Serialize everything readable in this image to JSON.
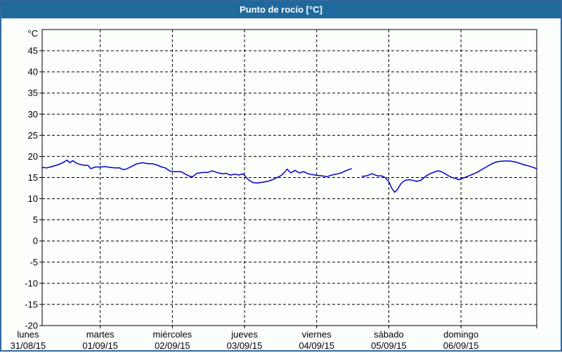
{
  "window": {
    "title": "Punto de rocío [°C]"
  },
  "colors": {
    "title_bar": "#1f699c",
    "frame_border": "#33679b",
    "page_bg": "#fcfefc",
    "line": "#0000c8",
    "grid": "#000000",
    "text": "#000000"
  },
  "chart_data": {
    "type": "line",
    "title": "Punto de rocío [°C]",
    "ylabel": "°C",
    "unit": "°C",
    "ylim": [
      -20,
      50
    ],
    "ytick_labels": [
      45,
      40,
      35,
      30,
      25,
      20,
      15,
      10,
      5,
      0,
      -5,
      -10,
      -15,
      -20
    ],
    "x_domain_days": [
      0.195,
      7.05
    ],
    "x_gridline_days": [
      1,
      2,
      3,
      4,
      5,
      6
    ],
    "grid": "dashed",
    "legend": "none",
    "x_labels": [
      {
        "d": 0,
        "day": "lunes",
        "date": "31/08/15"
      },
      {
        "d": 1,
        "day": "martes",
        "date": "01/09/15"
      },
      {
        "d": 2,
        "day": "miércoles",
        "date": "02/09/15"
      },
      {
        "d": 3,
        "day": "jueves",
        "date": "03/09/15"
      },
      {
        "d": 4,
        "day": "viernes",
        "date": "04/09/15"
      },
      {
        "d": 5,
        "day": "sábado",
        "date": "05/09/15"
      },
      {
        "d": 6,
        "day": "domingo",
        "date": "06/09/15"
      }
    ],
    "series": [
      {
        "name": "Punto de rocío",
        "segments": [
          [
            [
              0.195,
              17.4
            ],
            [
              0.26,
              17.3
            ],
            [
              0.33,
              17.6
            ],
            [
              0.41,
              18.0
            ],
            [
              0.48,
              18.5
            ],
            [
              0.54,
              19.1
            ],
            [
              0.58,
              18.5
            ],
            [
              0.62,
              19.0
            ],
            [
              0.67,
              18.4
            ],
            [
              0.72,
              18.1
            ],
            [
              0.78,
              17.9
            ],
            [
              0.83,
              17.9
            ],
            [
              0.87,
              17.1
            ],
            [
              0.93,
              17.5
            ],
            [
              1.0,
              17.5
            ],
            [
              1.07,
              17.6
            ],
            [
              1.14,
              17.4
            ],
            [
              1.21,
              17.3
            ],
            [
              1.27,
              17.3
            ],
            [
              1.31,
              16.9
            ],
            [
              1.36,
              17.0
            ],
            [
              1.43,
              17.6
            ],
            [
              1.5,
              18.2
            ],
            [
              1.58,
              18.5
            ],
            [
              1.66,
              18.3
            ],
            [
              1.72,
              18.3
            ],
            [
              1.78,
              18.0
            ],
            [
              1.85,
              17.5
            ],
            [
              1.9,
              17.3
            ],
            [
              1.97,
              16.5
            ],
            [
              2.05,
              16.4
            ],
            [
              2.12,
              16.4
            ],
            [
              2.18,
              15.8
            ],
            [
              2.24,
              15.3
            ],
            [
              2.28,
              15.2
            ],
            [
              2.34,
              16.0
            ],
            [
              2.42,
              16.2
            ],
            [
              2.49,
              16.2
            ],
            [
              2.55,
              16.6
            ],
            [
              2.62,
              16.2
            ],
            [
              2.69,
              15.9
            ],
            [
              2.75,
              16.0
            ],
            [
              2.8,
              15.6
            ],
            [
              2.87,
              15.8
            ],
            [
              2.92,
              15.6
            ],
            [
              2.98,
              15.9
            ],
            [
              3.02,
              15.1
            ],
            [
              3.06,
              14.4
            ],
            [
              3.12,
              13.8
            ],
            [
              3.18,
              13.7
            ],
            [
              3.25,
              13.9
            ],
            [
              3.32,
              14.1
            ],
            [
              3.39,
              14.5
            ],
            [
              3.45,
              15.0
            ],
            [
              3.51,
              15.5
            ],
            [
              3.55,
              16.2
            ],
            [
              3.59,
              17.0
            ],
            [
              3.64,
              16.1
            ],
            [
              3.7,
              16.7
            ],
            [
              3.76,
              16.1
            ],
            [
              3.82,
              16.4
            ],
            [
              3.88,
              15.9
            ],
            [
              3.94,
              15.7
            ],
            [
              4.01,
              15.5
            ],
            [
              4.08,
              15.4
            ],
            [
              4.14,
              15.2
            ],
            [
              4.21,
              15.6
            ],
            [
              4.27,
              15.8
            ],
            [
              4.34,
              16.1
            ],
            [
              4.4,
              16.6
            ],
            [
              4.48,
              17.1
            ]
          ],
          [
            [
              4.63,
              15.3
            ],
            [
              4.69,
              15.4
            ],
            [
              4.77,
              15.9
            ],
            [
              4.84,
              15.4
            ],
            [
              4.9,
              15.4
            ],
            [
              4.95,
              15.0
            ],
            [
              5.0,
              14.0
            ],
            [
              5.04,
              12.5
            ],
            [
              5.08,
              11.5
            ],
            [
              5.12,
              12.2
            ],
            [
              5.17,
              13.6
            ],
            [
              5.22,
              14.3
            ],
            [
              5.28,
              14.5
            ],
            [
              5.34,
              14.3
            ],
            [
              5.39,
              14.1
            ],
            [
              5.45,
              14.4
            ],
            [
              5.51,
              15.3
            ],
            [
              5.57,
              15.9
            ],
            [
              5.63,
              16.3
            ],
            [
              5.68,
              16.6
            ],
            [
              5.73,
              16.4
            ],
            [
              5.79,
              15.8
            ],
            [
              5.86,
              15.1
            ],
            [
              5.92,
              14.8
            ],
            [
              5.97,
              14.5
            ],
            [
              6.02,
              14.8
            ],
            [
              6.08,
              15.2
            ],
            [
              6.15,
              15.7
            ],
            [
              6.23,
              16.3
            ],
            [
              6.31,
              17.1
            ],
            [
              6.39,
              17.9
            ],
            [
              6.46,
              18.5
            ],
            [
              6.52,
              18.8
            ],
            [
              6.6,
              18.9
            ],
            [
              6.68,
              18.9
            ],
            [
              6.75,
              18.7
            ],
            [
              6.81,
              18.4
            ],
            [
              6.88,
              18.0
            ],
            [
              6.95,
              17.7
            ],
            [
              7.0,
              17.4
            ],
            [
              7.05,
              17.1
            ]
          ]
        ]
      }
    ]
  }
}
